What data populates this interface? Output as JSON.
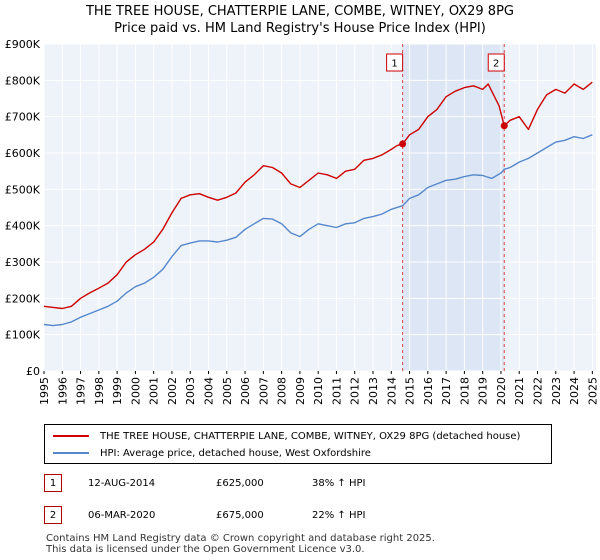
{
  "chart_data": {
    "type": "line",
    "title": "THE TREE HOUSE, CHATTERPIE LANE, COMBE, WITNEY, OX29 8PG",
    "subtitle": "Price paid vs. HM Land Registry's House Price Index (HPI)",
    "xlabel": "",
    "ylabel": "",
    "xlim": [
      1995,
      2025.2
    ],
    "ylim": [
      0,
      900000
    ],
    "grid": true,
    "x_ticks": [
      "1995",
      "1996",
      "1997",
      "1998",
      "1999",
      "2000",
      "2001",
      "2002",
      "2003",
      "2004",
      "2005",
      "2006",
      "2007",
      "2008",
      "2009",
      "2010",
      "2011",
      "2012",
      "2013",
      "2014",
      "2015",
      "2016",
      "2017",
      "2018",
      "2019",
      "2020",
      "2021",
      "2022",
      "2023",
      "2024",
      "2025"
    ],
    "y_ticks": [
      {
        "value": 0,
        "label": "£0"
      },
      {
        "value": 100000,
        "label": "£100K"
      },
      {
        "value": 200000,
        "label": "£200K"
      },
      {
        "value": 300000,
        "label": "£300K"
      },
      {
        "value": 400000,
        "label": "£400K"
      },
      {
        "value": 500000,
        "label": "£500K"
      },
      {
        "value": 600000,
        "label": "£600K"
      },
      {
        "value": 700000,
        "label": "£700K"
      },
      {
        "value": 800000,
        "label": "£800K"
      },
      {
        "value": 900000,
        "label": "£900K"
      }
    ],
    "series": [
      {
        "name": "THE TREE HOUSE, CHATTERPIE LANE, COMBE, WITNEY, OX29 8PG (detached house)",
        "color": "#cc0000",
        "x": [
          1995,
          1995.5,
          1996,
          1996.5,
          1997,
          1997.5,
          1998,
          1998.5,
          1999,
          1999.5,
          2000,
          2000.5,
          2001,
          2001.5,
          2002,
          2002.5,
          2003,
          2003.5,
          2004,
          2004.5,
          2005,
          2005.5,
          2006,
          2006.5,
          2007,
          2007.5,
          2008,
          2008.5,
          2009,
          2009.5,
          2010,
          2010.5,
          2011,
          2011.5,
          2012,
          2012.5,
          2013,
          2013.5,
          2014,
          2014.3,
          2014.62,
          2015,
          2015.5,
          2016,
          2016.5,
          2017,
          2017.5,
          2018,
          2018.5,
          2019,
          2019.3,
          2019.6,
          2019.9,
          2020.18,
          2020.5,
          2021,
          2021.5,
          2022,
          2022.5,
          2023,
          2023.5,
          2024,
          2024.5,
          2025
        ],
        "y": [
          178000,
          175000,
          172000,
          178000,
          200000,
          215000,
          228000,
          242000,
          265000,
          300000,
          320000,
          335000,
          355000,
          390000,
          435000,
          475000,
          485000,
          488000,
          478000,
          470000,
          478000,
          490000,
          520000,
          540000,
          565000,
          560000,
          545000,
          515000,
          505000,
          525000,
          545000,
          540000,
          530000,
          550000,
          555000,
          580000,
          585000,
          595000,
          610000,
          620000,
          625000,
          650000,
          665000,
          700000,
          720000,
          755000,
          770000,
          780000,
          785000,
          775000,
          790000,
          760000,
          730000,
          675000,
          690000,
          700000,
          665000,
          720000,
          760000,
          775000,
          765000,
          790000,
          775000,
          795000
        ]
      },
      {
        "name": "HPI: Average price, detached house, West Oxfordshire",
        "color": "#5588cc",
        "x": [
          1995,
          1995.5,
          1996,
          1996.5,
          1997,
          1997.5,
          1998,
          1998.5,
          1999,
          1999.5,
          2000,
          2000.5,
          2001,
          2001.5,
          2002,
          2002.5,
          2003,
          2003.5,
          2004,
          2004.5,
          2005,
          2005.5,
          2006,
          2006.5,
          2007,
          2007.5,
          2008,
          2008.5,
          2009,
          2009.5,
          2010,
          2010.5,
          2011,
          2011.5,
          2012,
          2012.5,
          2013,
          2013.5,
          2014,
          2014.62,
          2015,
          2015.5,
          2016,
          2016.5,
          2017,
          2017.5,
          2018,
          2018.5,
          2019,
          2019.5,
          2020,
          2020.18,
          2020.5,
          2021,
          2021.5,
          2022,
          2022.5,
          2023,
          2023.5,
          2024,
          2024.5,
          2025
        ],
        "y": [
          128000,
          125000,
          128000,
          135000,
          148000,
          158000,
          168000,
          178000,
          192000,
          215000,
          232000,
          242000,
          258000,
          280000,
          315000,
          345000,
          352000,
          358000,
          358000,
          355000,
          360000,
          368000,
          390000,
          405000,
          420000,
          418000,
          405000,
          380000,
          370000,
          390000,
          405000,
          400000,
          395000,
          405000,
          408000,
          420000,
          425000,
          432000,
          445000,
          455000,
          475000,
          485000,
          505000,
          515000,
          525000,
          528000,
          535000,
          540000,
          538000,
          530000,
          545000,
          555000,
          560000,
          575000,
          585000,
          600000,
          615000,
          630000,
          635000,
          645000,
          640000,
          650000
        ]
      }
    ],
    "markers": [
      {
        "label": "1",
        "x": 2014.62,
        "y": 625000
      },
      {
        "label": "2",
        "x": 2020.18,
        "y": 675000
      }
    ]
  },
  "legend": {
    "property_label": "THE TREE HOUSE, CHATTERPIE LANE, COMBE, WITNEY, OX29 8PG (detached house)",
    "hpi_label": "HPI: Average price, detached house, West Oxfordshire"
  },
  "transactions": [
    {
      "num": "1",
      "date": "12-AUG-2014",
      "price": "£625,000",
      "hpi": "38% ↑ HPI"
    },
    {
      "num": "2",
      "date": "06-MAR-2020",
      "price": "£675,000",
      "hpi": "22% ↑ HPI"
    }
  ],
  "footer": {
    "line1": "Contains HM Land Registry data © Crown copyright and database right 2025.",
    "line2": "This data is licensed under the Open Government Licence v3.0."
  },
  "colors": {
    "property": "#cc0000",
    "hpi": "#5588cc",
    "plot_bg": "#eef2f9",
    "shade": "#dde6f5",
    "grid": "#ffffff"
  }
}
